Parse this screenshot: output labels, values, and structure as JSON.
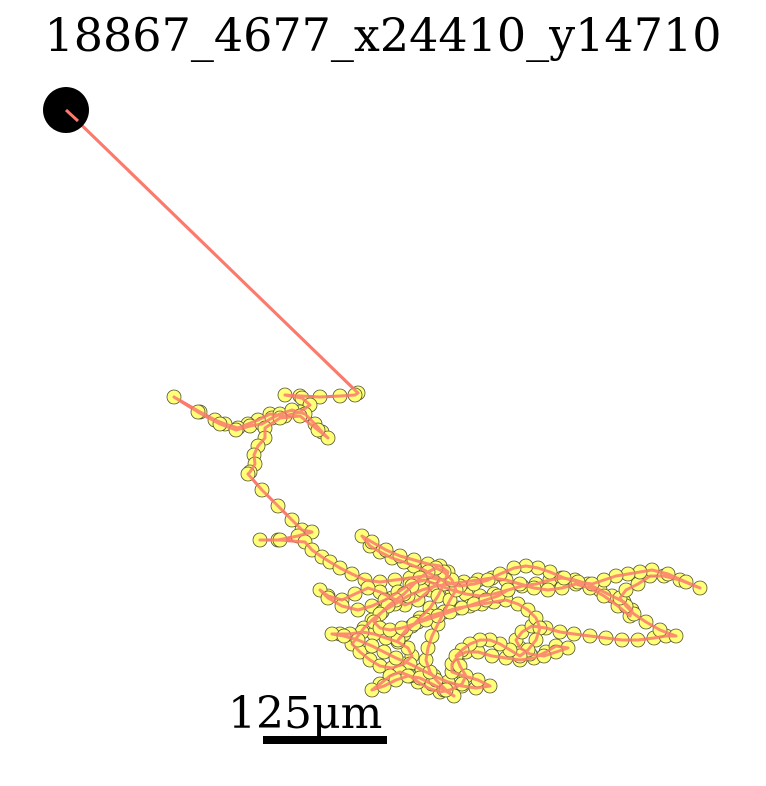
{
  "chart_data": {
    "type": "scatter",
    "title": "18867_4677_x24410_y14710",
    "xlabel": "",
    "ylabel": "",
    "axes_visible": false,
    "grid": false,
    "scale_bar": {
      "label": "125μm",
      "length_um": 125
    },
    "colors": {
      "track": "#fa7a6c",
      "point_fill": "#ffff78",
      "point_edge": "#555533",
      "start_marker": "#000000"
    },
    "start": {
      "x": 66,
      "y": 110
    },
    "points": [
      [
        66,
        110
      ],
      [
        358,
        393
      ],
      [
        355,
        395
      ],
      [
        340,
        396
      ],
      [
        320,
        397
      ],
      [
        300,
        396
      ],
      [
        285,
        395
      ],
      [
        302,
        398
      ],
      [
        310,
        405
      ],
      [
        300,
        412
      ],
      [
        285,
        416
      ],
      [
        270,
        414
      ],
      [
        258,
        420
      ],
      [
        248,
        424
      ],
      [
        238,
        428
      ],
      [
        225,
        424
      ],
      [
        215,
        420
      ],
      [
        200,
        412
      ],
      [
        174,
        397
      ],
      [
        198,
        412
      ],
      [
        220,
        424
      ],
      [
        236,
        430
      ],
      [
        250,
        426
      ],
      [
        262,
        424
      ],
      [
        272,
        418
      ],
      [
        280,
        414
      ],
      [
        292,
        410
      ],
      [
        305,
        414
      ],
      [
        315,
        424
      ],
      [
        322,
        432
      ],
      [
        328,
        438
      ],
      [
        318,
        430
      ],
      [
        300,
        416
      ],
      [
        280,
        418
      ],
      [
        265,
        428
      ],
      [
        265,
        438
      ],
      [
        258,
        446
      ],
      [
        254,
        455
      ],
      [
        255,
        464
      ],
      [
        250,
        472
      ],
      [
        248,
        474
      ],
      [
        262,
        490
      ],
      [
        278,
        506
      ],
      [
        292,
        520
      ],
      [
        302,
        530
      ],
      [
        312,
        532
      ],
      [
        298,
        536
      ],
      [
        278,
        540
      ],
      [
        260,
        540
      ],
      [
        280,
        540
      ],
      [
        305,
        542
      ],
      [
        312,
        550
      ],
      [
        322,
        557
      ],
      [
        330,
        562
      ],
      [
        340,
        568
      ],
      [
        352,
        574
      ],
      [
        365,
        580
      ],
      [
        380,
        582
      ],
      [
        395,
        580
      ],
      [
        410,
        578
      ],
      [
        425,
        576
      ],
      [
        440,
        580
      ],
      [
        430,
        590
      ],
      [
        418,
        600
      ],
      [
        405,
        605
      ],
      [
        392,
        598
      ],
      [
        380,
        592
      ],
      [
        368,
        588
      ],
      [
        355,
        594
      ],
      [
        342,
        600
      ],
      [
        328,
        596
      ],
      [
        320,
        590
      ],
      [
        328,
        598
      ],
      [
        342,
        606
      ],
      [
        358,
        610
      ],
      [
        372,
        606
      ],
      [
        385,
        600
      ],
      [
        398,
        592
      ],
      [
        410,
        584
      ],
      [
        424,
        580
      ],
      [
        438,
        585
      ],
      [
        452,
        590
      ],
      [
        466,
        594
      ],
      [
        480,
        596
      ],
      [
        494,
        594
      ],
      [
        508,
        590
      ],
      [
        522,
        586
      ],
      [
        536,
        584
      ],
      [
        550,
        580
      ],
      [
        562,
        578
      ],
      [
        575,
        580
      ],
      [
        588,
        584
      ],
      [
        600,
        590
      ],
      [
        612,
        596
      ],
      [
        624,
        602
      ],
      [
        632,
        610
      ],
      [
        630,
        616
      ],
      [
        618,
        606
      ],
      [
        604,
        596
      ],
      [
        590,
        588
      ],
      [
        576,
        584
      ],
      [
        562,
        588
      ],
      [
        548,
        590
      ],
      [
        534,
        588
      ],
      [
        520,
        584
      ],
      [
        506,
        580
      ],
      [
        492,
        578
      ],
      [
        478,
        580
      ],
      [
        464,
        582
      ],
      [
        450,
        584
      ],
      [
        436,
        586
      ],
      [
        422,
        590
      ],
      [
        408,
        596
      ],
      [
        395,
        604
      ],
      [
        382,
        612
      ],
      [
        372,
        620
      ],
      [
        364,
        628
      ],
      [
        358,
        636
      ],
      [
        352,
        644
      ],
      [
        360,
        652
      ],
      [
        370,
        660
      ],
      [
        380,
        666
      ],
      [
        392,
        668
      ],
      [
        404,
        664
      ],
      [
        412,
        656
      ],
      [
        408,
        648
      ],
      [
        398,
        642
      ],
      [
        386,
        638
      ],
      [
        374,
        634
      ],
      [
        362,
        632
      ],
      [
        350,
        634
      ],
      [
        340,
        634
      ],
      [
        332,
        634
      ],
      [
        344,
        636
      ],
      [
        358,
        640
      ],
      [
        372,
        646
      ],
      [
        384,
        652
      ],
      [
        396,
        658
      ],
      [
        410,
        664
      ],
      [
        422,
        670
      ],
      [
        434,
        676
      ],
      [
        448,
        682
      ],
      [
        462,
        686
      ],
      [
        476,
        688
      ],
      [
        490,
        686
      ],
      [
        478,
        680
      ],
      [
        464,
        676
      ],
      [
        452,
        672
      ],
      [
        452,
        664
      ],
      [
        458,
        656
      ],
      [
        466,
        652
      ],
      [
        478,
        652
      ],
      [
        492,
        656
      ],
      [
        506,
        658
      ],
      [
        520,
        660
      ],
      [
        534,
        658
      ],
      [
        546,
        652
      ],
      [
        556,
        646
      ],
      [
        568,
        648
      ],
      [
        556,
        652
      ],
      [
        544,
        656
      ],
      [
        530,
        654
      ],
      [
        520,
        648
      ],
      [
        516,
        640
      ],
      [
        522,
        632
      ],
      [
        532,
        626
      ],
      [
        546,
        628
      ],
      [
        560,
        632
      ],
      [
        574,
        634
      ],
      [
        590,
        636
      ],
      [
        606,
        638
      ],
      [
        622,
        640
      ],
      [
        638,
        640
      ],
      [
        654,
        638
      ],
      [
        666,
        636
      ],
      [
        676,
        636
      ],
      [
        660,
        630
      ],
      [
        646,
        622
      ],
      [
        634,
        614
      ],
      [
        626,
        606
      ],
      [
        620,
        598
      ],
      [
        626,
        590
      ],
      [
        638,
        584
      ],
      [
        650,
        576
      ],
      [
        664,
        576
      ],
      [
        680,
        580
      ],
      [
        700,
        588
      ],
      [
        686,
        582
      ],
      [
        668,
        574
      ],
      [
        652,
        570
      ],
      [
        640,
        572
      ],
      [
        628,
        574
      ],
      [
        616,
        576
      ],
      [
        604,
        580
      ],
      [
        592,
        584
      ],
      [
        578,
        582
      ],
      [
        564,
        578
      ],
      [
        550,
        572
      ],
      [
        538,
        568
      ],
      [
        526,
        566
      ],
      [
        514,
        568
      ],
      [
        500,
        574
      ],
      [
        488,
        580
      ],
      [
        474,
        584
      ],
      [
        460,
        586
      ],
      [
        446,
        582
      ],
      [
        434,
        576
      ],
      [
        424,
        570
      ],
      [
        414,
        566
      ],
      [
        404,
        562
      ],
      [
        392,
        558
      ],
      [
        380,
        552
      ],
      [
        370,
        546
      ],
      [
        362,
        536
      ],
      [
        372,
        542
      ],
      [
        386,
        550
      ],
      [
        400,
        556
      ],
      [
        414,
        560
      ],
      [
        428,
        564
      ],
      [
        440,
        566
      ],
      [
        448,
        572
      ],
      [
        444,
        584
      ],
      [
        438,
        596
      ],
      [
        430,
        608
      ],
      [
        420,
        618
      ],
      [
        412,
        626
      ],
      [
        404,
        634
      ],
      [
        398,
        640
      ],
      [
        406,
        630
      ],
      [
        418,
        622
      ],
      [
        430,
        616
      ],
      [
        444,
        612
      ],
      [
        458,
        608
      ],
      [
        470,
        606
      ],
      [
        482,
        604
      ],
      [
        494,
        602
      ],
      [
        506,
        600
      ],
      [
        518,
        604
      ],
      [
        528,
        610
      ],
      [
        536,
        618
      ],
      [
        540,
        628
      ],
      [
        536,
        640
      ],
      [
        528,
        650
      ],
      [
        520,
        656
      ],
      [
        510,
        650
      ],
      [
        500,
        644
      ],
      [
        490,
        640
      ],
      [
        480,
        640
      ],
      [
        470,
        644
      ],
      [
        462,
        650
      ],
      [
        456,
        656
      ],
      [
        460,
        666
      ],
      [
        466,
        676
      ],
      [
        462,
        684
      ],
      [
        450,
        690
      ],
      [
        440,
        692
      ],
      [
        428,
        688
      ],
      [
        418,
        682
      ],
      [
        410,
        676
      ],
      [
        400,
        672
      ],
      [
        390,
        676
      ],
      [
        380,
        684
      ],
      [
        372,
        690
      ],
      [
        384,
        686
      ],
      [
        396,
        680
      ],
      [
        408,
        676
      ],
      [
        420,
        678
      ],
      [
        432,
        684
      ],
      [
        444,
        690
      ],
      [
        454,
        696
      ],
      [
        446,
        690
      ],
      [
        436,
        680
      ],
      [
        430,
        672
      ],
      [
        426,
        660
      ],
      [
        428,
        648
      ],
      [
        432,
        636
      ],
      [
        438,
        624
      ],
      [
        444,
        612
      ],
      [
        450,
        600
      ],
      [
        456,
        590
      ],
      [
        452,
        580
      ],
      [
        444,
        572
      ],
      [
        436,
        568
      ],
      [
        428,
        572
      ],
      [
        420,
        578
      ],
      [
        412,
        586
      ],
      [
        404,
        594
      ],
      [
        396,
        600
      ],
      [
        388,
        606
      ],
      [
        380,
        614
      ],
      [
        374,
        622
      ],
      [
        380,
        628
      ],
      [
        390,
        630
      ],
      [
        402,
        628
      ],
      [
        414,
        624
      ],
      [
        426,
        620
      ],
      [
        438,
        616
      ],
      [
        450,
        612
      ],
      [
        462,
        608
      ],
      [
        474,
        604
      ],
      [
        486,
        600
      ],
      [
        498,
        596
      ],
      [
        508,
        590
      ]
    ]
  }
}
